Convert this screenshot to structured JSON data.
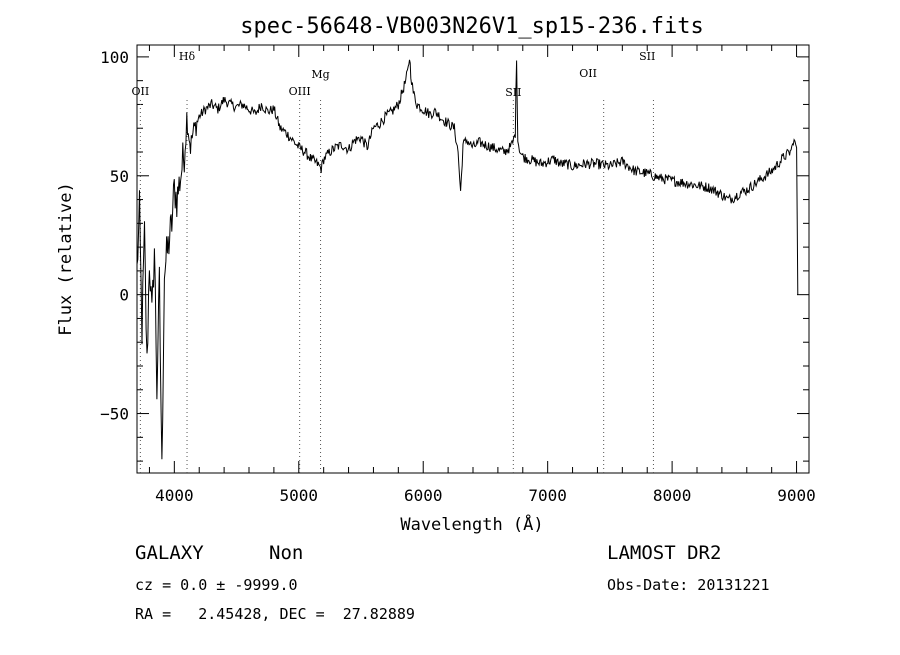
{
  "chart_data": {
    "type": "line",
    "title": "spec-56648-VB003N26V1_sp15-236.fits",
    "xlabel": "Wavelength (Å)",
    "ylabel": "Flux (relative)",
    "xlim": [
      3700,
      9100
    ],
    "ylim": [
      -75,
      105
    ],
    "x_ticks": [
      4000,
      5000,
      6000,
      7000,
      8000,
      9000
    ],
    "y_ticks": [
      -50,
      0,
      50,
      100
    ],
    "x_tick_labels": [
      "4000",
      "5000",
      "6000",
      "7000",
      "8000",
      "9000"
    ],
    "y_tick_labels": [
      "−50",
      "0",
      "50",
      "100"
    ],
    "grid": false,
    "series": [
      {
        "x": [
          3700,
          3720,
          3740,
          3760,
          3780,
          3800,
          3820,
          3840,
          3860,
          3880,
          3900,
          3920,
          3950,
          3980,
          4000,
          4020,
          4050,
          4080,
          4100,
          4130,
          4150,
          4200,
          4250,
          4300,
          4350,
          4400,
          4450,
          4500,
          4550,
          4600,
          4650,
          4700,
          4750,
          4800,
          4850,
          4900,
          4950,
          5000,
          5050,
          5100,
          5150,
          5180,
          5200,
          5250,
          5300,
          5350,
          5400,
          5450,
          5500,
          5550,
          5600,
          5650,
          5700,
          5750,
          5800,
          5830,
          5860,
          5880,
          5890,
          5900,
          5920,
          5950,
          6000,
          6050,
          6100,
          6150,
          6200,
          6250,
          6280,
          6300,
          6320,
          6350,
          6400,
          6450,
          6500,
          6550,
          6600,
          6650,
          6700,
          6720,
          6740,
          6750,
          6760,
          6780,
          6800,
          6850,
          6900,
          6950,
          7000,
          7050,
          7100,
          7150,
          7200,
          7300,
          7400,
          7500,
          7600,
          7700,
          7800,
          7900,
          8000,
          8100,
          8200,
          8300,
          8400,
          8450,
          8500,
          8550,
          8600,
          8650,
          8700,
          8750,
          8800,
          8850,
          8900,
          8950,
          8980,
          9000,
          9010
        ],
        "y": [
          10,
          35,
          -15,
          25,
          -30,
          15,
          -10,
          20,
          -40,
          5,
          -75,
          10,
          20,
          30,
          45,
          40,
          50,
          60,
          75,
          62,
          68,
          75,
          78,
          80,
          78,
          82,
          80,
          79,
          80,
          78,
          76,
          80,
          77,
          78,
          70,
          68,
          65,
          62,
          60,
          57,
          55,
          53,
          57,
          60,
          62,
          63,
          61,
          65,
          66,
          62,
          70,
          72,
          75,
          77,
          80,
          85,
          90,
          95,
          100,
          93,
          85,
          80,
          78,
          76,
          77,
          74,
          72,
          70,
          60,
          43,
          63,
          65,
          62,
          64,
          63,
          62,
          61,
          60,
          62,
          64,
          68,
          100,
          65,
          60,
          58,
          57,
          56,
          55,
          56,
          57,
          55,
          55,
          54,
          55,
          55,
          54,
          56,
          52,
          51,
          49,
          48,
          47,
          46,
          45,
          42,
          40,
          41,
          43,
          44,
          46,
          48,
          50,
          52,
          55,
          58,
          60,
          65,
          62,
          0
        ],
        "color": "#000000"
      }
    ],
    "line_labels": [
      {
        "label": "OII",
        "wavelength": 3727,
        "marker": true
      },
      {
        "label": "Hδ",
        "wavelength": 4102,
        "marker": true
      },
      {
        "label": "OIII",
        "wavelength": 5007,
        "marker": true
      },
      {
        "label": "Mg",
        "wavelength": 5175,
        "marker": true
      },
      {
        "label": "SII",
        "wavelength": 6724,
        "marker": true
      },
      {
        "label": "OII",
        "wavelength": 7325,
        "marker": false
      },
      {
        "label": "SII",
        "wavelength": 7800,
        "marker": false
      }
    ],
    "marker_lines": [
      3727,
      4102,
      5007,
      5175,
      6724,
      7450,
      7850
    ]
  },
  "info": {
    "object_class": "GALAXY",
    "subclass": "Non",
    "survey": "LAMOST DR2",
    "cz": "cz = 0.0 ± -9999.0",
    "obs_date": "Obs-Date: 20131221",
    "coords": "RA =   2.45428, DEC =  27.82889"
  }
}
